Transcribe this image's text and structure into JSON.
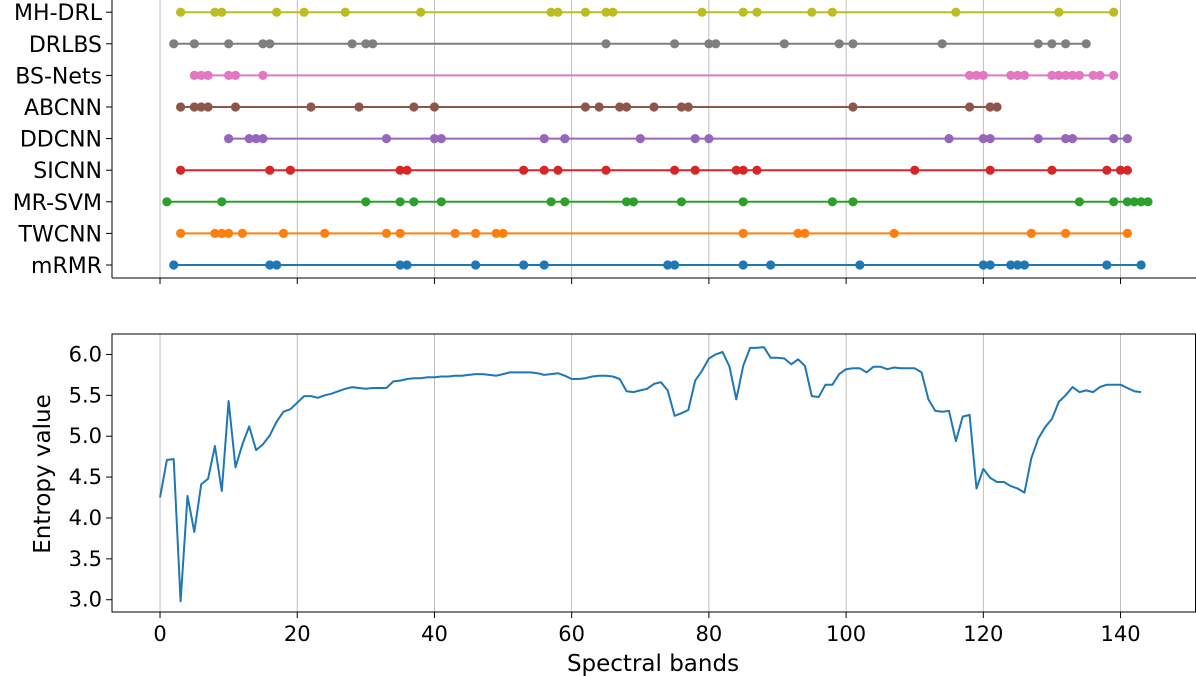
{
  "chart_data": [
    {
      "type": "scatter",
      "panel": "top",
      "xlim": [
        -7,
        151
      ],
      "x_ticks": [
        0,
        20,
        40,
        60,
        80,
        100,
        120,
        140
      ],
      "grid_x": true,
      "tick_labels_x_visible": false,
      "categories": [
        "mRMR",
        "TWCNN",
        "MR-SVM",
        "SICNN",
        "DDCNN",
        "ABCNN",
        "BS-Nets",
        "DRLBS",
        "MH-DRL"
      ],
      "series": [
        {
          "name": "mRMR",
          "color": "#1f77b4",
          "values": [
            2,
            16,
            17,
            35,
            36,
            46,
            53,
            56,
            74,
            75,
            85,
            89,
            102,
            120,
            121,
            124,
            125,
            126,
            138,
            143
          ]
        },
        {
          "name": "TWCNN",
          "color": "#ff7f0e",
          "values": [
            3,
            8,
            9,
            10,
            12,
            18,
            24,
            33,
            35,
            43,
            46,
            49,
            50,
            85,
            93,
            94,
            107,
            127,
            132,
            141
          ]
        },
        {
          "name": "MR-SVM",
          "color": "#2ca02c",
          "values": [
            1,
            9,
            30,
            35,
            37,
            41,
            57,
            59,
            68,
            69,
            76,
            85,
            98,
            101,
            134,
            139,
            141,
            142,
            143,
            144
          ]
        },
        {
          "name": "SICNN",
          "color": "#d62728",
          "values": [
            3,
            16,
            19,
            35,
            36,
            53,
            56,
            58,
            65,
            75,
            78,
            84,
            85,
            87,
            110,
            121,
            130,
            138,
            140,
            141
          ]
        },
        {
          "name": "DDCNN",
          "color": "#9467bd",
          "values": [
            10,
            13,
            14,
            15,
            33,
            40,
            41,
            56,
            59,
            70,
            78,
            80,
            115,
            120,
            121,
            128,
            132,
            133,
            139,
            141
          ]
        },
        {
          "name": "ABCNN",
          "color": "#8c564b",
          "values": [
            3,
            5,
            6,
            7,
            11,
            22,
            29,
            37,
            40,
            62,
            64,
            67,
            68,
            72,
            76,
            77,
            101,
            118,
            121,
            122
          ]
        },
        {
          "name": "BS-Nets",
          "color": "#e377c2",
          "values": [
            5,
            6,
            7,
            10,
            11,
            15,
            118,
            119,
            120,
            124,
            125,
            126,
            130,
            131,
            132,
            133,
            134,
            136,
            137,
            139
          ]
        },
        {
          "name": "DRLBS",
          "color": "#7f7f7f",
          "values": [
            2,
            5,
            10,
            15,
            16,
            28,
            30,
            31,
            65,
            75,
            80,
            81,
            91,
            99,
            101,
            114,
            128,
            130,
            132,
            135
          ]
        },
        {
          "name": "MH-DRL",
          "color": "#bcbd22",
          "values": [
            3,
            8,
            9,
            17,
            21,
            27,
            38,
            57,
            58,
            62,
            65,
            66,
            79,
            85,
            87,
            95,
            98,
            116,
            131,
            139
          ]
        }
      ]
    },
    {
      "type": "line",
      "panel": "bottom",
      "xlabel": "Spectral bands",
      "ylabel": "Entropy value",
      "xlim": [
        -7,
        151
      ],
      "ylim": [
        2.85,
        6.25
      ],
      "x_ticks": [
        0,
        20,
        40,
        60,
        80,
        100,
        120,
        140
      ],
      "y_ticks": [
        3.0,
        3.5,
        4.0,
        4.5,
        5.0,
        5.5,
        6.0
      ],
      "grid_x": true,
      "color": "#1f77b4",
      "x": [
        0,
        1,
        2,
        3,
        4,
        5,
        6,
        7,
        8,
        9,
        10,
        11,
        12,
        13,
        14,
        15,
        16,
        17,
        18,
        19,
        20,
        21,
        22,
        23,
        24,
        25,
        26,
        27,
        28,
        29,
        30,
        31,
        32,
        33,
        34,
        35,
        36,
        37,
        38,
        39,
        40,
        41,
        42,
        43,
        44,
        45,
        46,
        47,
        48,
        49,
        50,
        51,
        52,
        53,
        54,
        55,
        56,
        57,
        58,
        59,
        60,
        61,
        62,
        63,
        64,
        65,
        66,
        67,
        68,
        69,
        70,
        71,
        72,
        73,
        74,
        75,
        76,
        77,
        78,
        79,
        80,
        81,
        82,
        83,
        84,
        85,
        86,
        87,
        88,
        89,
        90,
        91,
        92,
        93,
        94,
        95,
        96,
        97,
        98,
        99,
        100,
        101,
        102,
        103,
        104,
        105,
        106,
        107,
        108,
        109,
        110,
        111,
        112,
        113,
        114,
        115,
        116,
        117,
        118,
        119,
        120,
        121,
        122,
        123,
        124,
        125,
        126,
        127,
        128,
        129,
        130,
        131,
        132,
        133,
        134,
        135,
        136,
        137,
        138,
        139,
        140,
        141,
        142,
        143
      ],
      "y": [
        4.25,
        4.71,
        4.72,
        2.98,
        4.27,
        3.83,
        4.41,
        4.48,
        4.88,
        4.33,
        5.43,
        4.62,
        4.9,
        5.12,
        4.83,
        4.9,
        5.01,
        5.18,
        5.3,
        5.33,
        5.41,
        5.49,
        5.49,
        5.47,
        5.5,
        5.52,
        5.55,
        5.58,
        5.6,
        5.59,
        5.58,
        5.59,
        5.59,
        5.59,
        5.67,
        5.68,
        5.7,
        5.71,
        5.71,
        5.72,
        5.72,
        5.73,
        5.73,
        5.74,
        5.74,
        5.75,
        5.76,
        5.76,
        5.75,
        5.74,
        5.76,
        5.78,
        5.78,
        5.78,
        5.78,
        5.77,
        5.75,
        5.76,
        5.77,
        5.74,
        5.7,
        5.7,
        5.71,
        5.73,
        5.74,
        5.74,
        5.73,
        5.7,
        5.55,
        5.54,
        5.56,
        5.58,
        5.64,
        5.66,
        5.56,
        5.25,
        5.28,
        5.32,
        5.68,
        5.8,
        5.95,
        6.0,
        6.03,
        5.85,
        5.45,
        5.86,
        6.08,
        6.08,
        6.09,
        5.96,
        5.96,
        5.95,
        5.88,
        5.94,
        5.86,
        5.49,
        5.48,
        5.63,
        5.63,
        5.76,
        5.82,
        5.83,
        5.83,
        5.78,
        5.85,
        5.85,
        5.82,
        5.84,
        5.83,
        5.83,
        5.83,
        5.78,
        5.45,
        5.31,
        5.3,
        5.31,
        4.94,
        5.24,
        5.26,
        4.36,
        4.6,
        4.49,
        4.44,
        4.44,
        4.39,
        4.36,
        4.31,
        4.73,
        4.97,
        5.11,
        5.21,
        5.42,
        5.5,
        5.6,
        5.54,
        5.56,
        5.54,
        5.6,
        5.63,
        5.63,
        5.63,
        5.59,
        5.55,
        5.54
      ]
    }
  ]
}
